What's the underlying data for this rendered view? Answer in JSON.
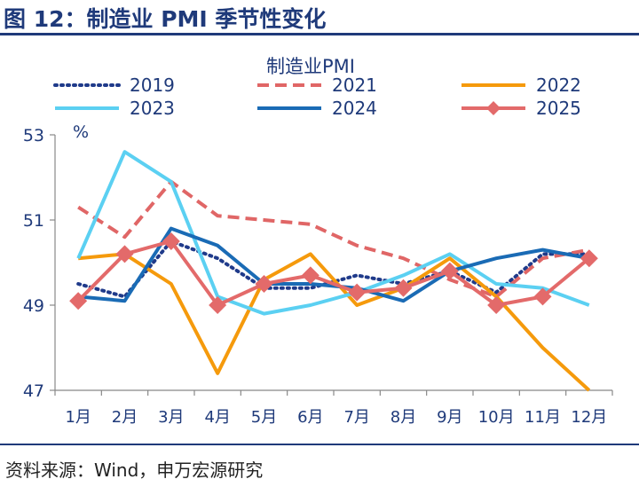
{
  "figure": {
    "title": "图 12：制造业 PMI 季节性变化",
    "source": "资料来源：Wind，申万宏源研究"
  },
  "chart_data": {
    "type": "line",
    "title": "制造业PMI",
    "ylabel": "%",
    "xlabel": "",
    "categories": [
      "1月",
      "2月",
      "3月",
      "4月",
      "5月",
      "6月",
      "7月",
      "8月",
      "9月",
      "10月",
      "11月",
      "12月"
    ],
    "ylim": [
      47,
      53
    ],
    "yticks": [
      47,
      49,
      51,
      53
    ],
    "legend_position": "top",
    "series": [
      {
        "name": "2019",
        "color": "#1f3a8a",
        "style": "dotted",
        "values": [
          49.5,
          49.2,
          50.5,
          50.1,
          49.4,
          49.4,
          49.7,
          49.5,
          49.8,
          49.3,
          50.2,
          50.2
        ]
      },
      {
        "name": "2021",
        "color": "#e06666",
        "style": "dashed",
        "values": [
          51.3,
          50.6,
          51.9,
          51.1,
          51.0,
          50.9,
          50.4,
          50.1,
          49.6,
          49.2,
          50.1,
          50.3
        ]
      },
      {
        "name": "2022",
        "color": "#f59a0c",
        "style": "solid",
        "values": [
          50.1,
          50.2,
          49.5,
          47.4,
          49.6,
          50.2,
          49.0,
          49.4,
          50.1,
          49.2,
          48.0,
          47.0
        ]
      },
      {
        "name": "2023",
        "color": "#5bd0f2",
        "style": "solid",
        "values": [
          50.1,
          52.6,
          51.9,
          49.2,
          48.8,
          49.0,
          49.3,
          49.7,
          50.2,
          49.5,
          49.4,
          49.0
        ]
      },
      {
        "name": "2024",
        "color": "#1a6bb5",
        "style": "solid",
        "values": [
          49.2,
          49.1,
          50.8,
          50.4,
          49.5,
          49.5,
          49.4,
          49.1,
          49.8,
          50.1,
          50.3,
          50.1
        ]
      },
      {
        "name": "2025",
        "color": "#e36a6a",
        "style": "diamond",
        "values": [
          49.1,
          50.2,
          50.5,
          49.0,
          49.5,
          49.7,
          49.3,
          49.4,
          49.8,
          49.0,
          49.2,
          50.1
        ]
      }
    ]
  }
}
